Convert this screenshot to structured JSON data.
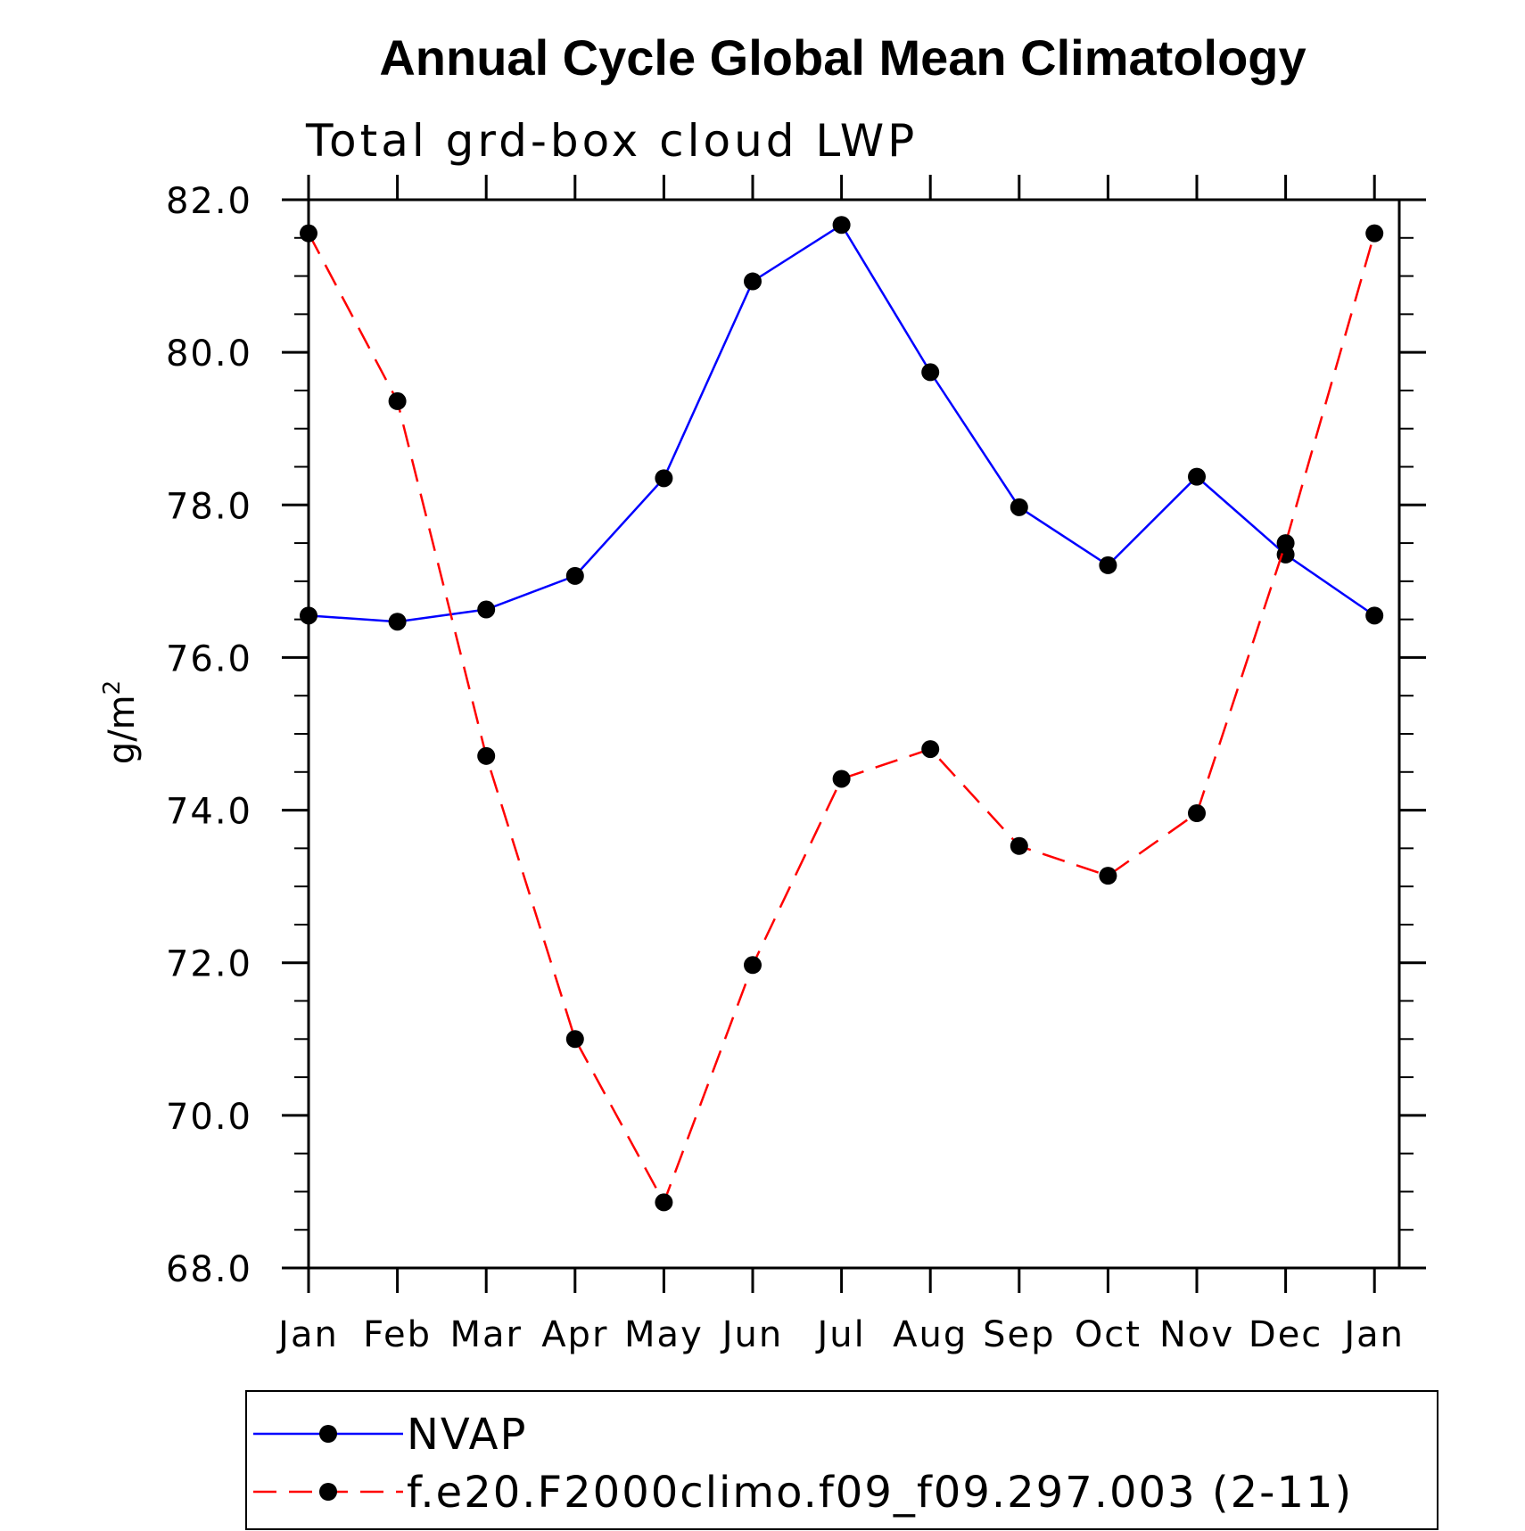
{
  "chart_data": {
    "type": "line",
    "title": "Annual Cycle Global Mean Climatology",
    "subtitle": "Total grd-box cloud LWP",
    "ylabel": "g/m",
    "ylabel_superscript": "2",
    "categories": [
      "Jan",
      "Feb",
      "Mar",
      "Apr",
      "May",
      "Jun",
      "Jul",
      "Aug",
      "Sep",
      "Oct",
      "Nov",
      "Dec",
      "Jan"
    ],
    "ylim": [
      68.0,
      82.0
    ],
    "y_ticks": [
      "68.0",
      "70.0",
      "72.0",
      "74.0",
      "76.0",
      "78.0",
      "80.0",
      "82.0"
    ],
    "grid": false,
    "legend_position": "bottom",
    "series": [
      {
        "name": "NVAP",
        "color": "#0000ff",
        "dash": "solid",
        "marker": "circle",
        "values": [
          76.55,
          76.47,
          76.63,
          77.07,
          78.35,
          80.93,
          81.67,
          79.74,
          77.97,
          77.21,
          78.37,
          77.35,
          76.55
        ]
      },
      {
        "name": "f.e20.F2000climo.f09_f09.297.003 (2-11)",
        "color": "#ff0000",
        "dash": "dashed",
        "marker": "circle",
        "values": [
          81.56,
          79.36,
          74.71,
          71.0,
          68.86,
          71.97,
          74.41,
          74.8,
          73.53,
          73.14,
          73.96,
          77.5,
          81.56
        ]
      }
    ]
  }
}
